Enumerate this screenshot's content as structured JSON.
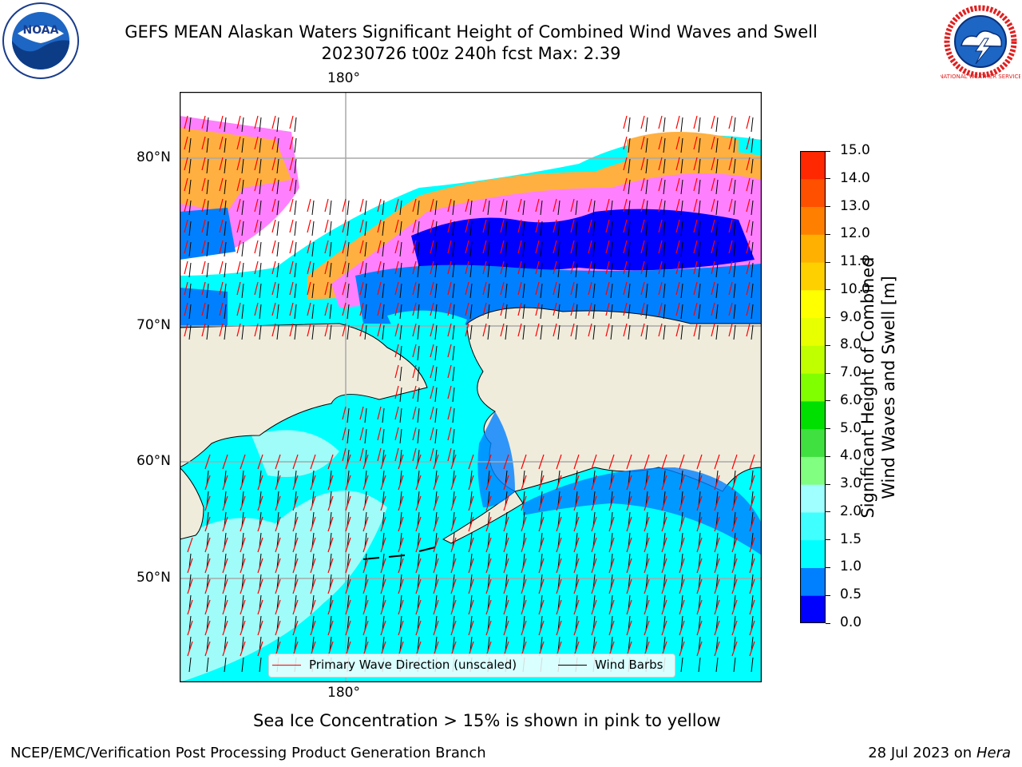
{
  "header": {
    "title_line1": "GEFS MEAN Alaskan Waters Significant Height of Combined Wind Waves and Swell",
    "title_line2": "20230726 t00z 240h fcst   Max: 2.39",
    "logo_left": "noaa-logo",
    "logo_right": "national-weather-service-logo",
    "logo_left_text": "NOAA",
    "logo_right_text": "NATIONAL WEATHER SERVICE"
  },
  "map": {
    "lon_labels": {
      "top": "180°",
      "bottom": "180°"
    },
    "lat_labels": [
      "80°N",
      "70°N",
      "60°N",
      "50°N"
    ],
    "colors": {
      "land": "#efecdc",
      "ocean_low": "#00ffff",
      "ocean_light": "#9ffcf8",
      "ocean_mid": "#0080ff",
      "ocean_deep": "#0000ff",
      "ice_pink": "#ff80ff",
      "ice_orange": "#ffb040",
      "wave_arrow": "#ff0000",
      "wind_barb": "#000000"
    }
  },
  "legend": {
    "items": [
      {
        "label": "Primary Wave Direction (unscaled)",
        "color": "#ff0000"
      },
      {
        "label": "Wind Barbs",
        "color": "#000000"
      }
    ]
  },
  "colorbar": {
    "label_line1": "Significant Height of Combined",
    "label_line2": "Wind Waves and Swell [m]",
    "ticks": [
      "0.0",
      "0.5",
      "1.0",
      "1.5",
      "2.0",
      "3.0",
      "4.0",
      "5.0",
      "6.0",
      "7.0",
      "8.0",
      "9.0",
      "10.0",
      "11.0",
      "12.0",
      "13.0",
      "14.0",
      "15.0"
    ],
    "bins": [
      "#0000ff",
      "#0080ff",
      "#00ffff",
      "#40ffff",
      "#a0ffff",
      "#80ff80",
      "#40e040",
      "#00e000",
      "#80ff00",
      "#c0ff00",
      "#e8ff00",
      "#ffff00",
      "#ffd000",
      "#ffb000",
      "#ff8000",
      "#ff5000",
      "#ff2800",
      "#ff0000"
    ]
  },
  "note": "Sea Ice Concentration > 15% is shown in pink to yellow",
  "footer": {
    "left": "NCEP/EMC/Verification Post Processing Product Generation Branch",
    "right_date": "28 Jul 2023 on ",
    "right_host": "Hera"
  }
}
